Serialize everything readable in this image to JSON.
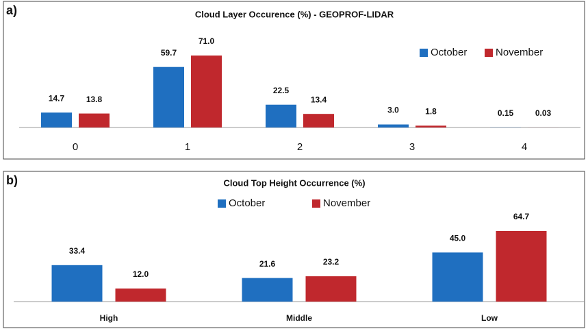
{
  "chart_data": [
    {
      "type": "bar",
      "panel_label": "a)",
      "title": "Cloud Layer Occurence (%) - GEOPROF-LIDAR",
      "categories": [
        "0",
        "1",
        "2",
        "3",
        "4"
      ],
      "series": [
        {
          "name": "October",
          "color": "#1f6fc0",
          "values": [
            14.7,
            59.7,
            22.5,
            3.0,
            0.15
          ],
          "value_labels": [
            "14.7",
            "59.7",
            "22.5",
            "3.0",
            "0.15"
          ]
        },
        {
          "name": "November",
          "color": "#c0282d",
          "values": [
            13.8,
            71.0,
            13.4,
            1.8,
            0.03
          ],
          "value_labels": [
            "13.8",
            "71.0",
            "13.4",
            "1.8",
            "0.03"
          ]
        }
      ]
    },
    {
      "type": "bar",
      "panel_label": "b)",
      "title": "Cloud Top Height Occurrence (%)",
      "categories": [
        "High",
        "Middle",
        "Low"
      ],
      "series": [
        {
          "name": "October",
          "color": "#1f6fc0",
          "values": [
            33.4,
            21.6,
            45.0
          ],
          "value_labels": [
            "33.4",
            "21.6",
            "45.0"
          ]
        },
        {
          "name": "November",
          "color": "#c0282d",
          "values": [
            12.0,
            23.2,
            64.7
          ],
          "value_labels": [
            "12.0",
            "23.2",
            "64.7"
          ]
        }
      ]
    }
  ]
}
